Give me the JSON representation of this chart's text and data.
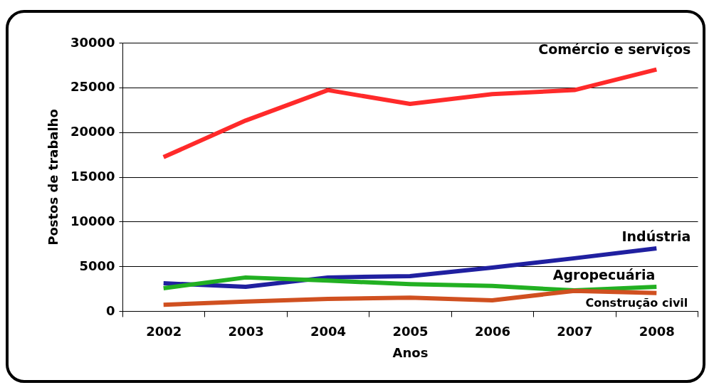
{
  "chart_data": {
    "type": "line",
    "xlabel": "Anos",
    "ylabel": "Postos de trabalho",
    "categories": [
      "2002",
      "2003",
      "2004",
      "2005",
      "2006",
      "2007",
      "2008"
    ],
    "ylim": [
      0,
      30000
    ],
    "yticks": [
      0,
      5000,
      10000,
      15000,
      20000,
      25000,
      30000
    ],
    "grid": "y",
    "legend": false,
    "series": [
      {
        "name": "Comércio e serviços",
        "color": "#ff2a2a",
        "values": [
          17200,
          21300,
          24700,
          23150,
          24250,
          24700,
          27000
        ]
      },
      {
        "name": "Indústria",
        "color": "#2020a0",
        "values": [
          3100,
          2700,
          3750,
          3900,
          4850,
          5900,
          7000
        ]
      },
      {
        "name": "Agropecuária",
        "color": "#22b022",
        "values": [
          2550,
          3750,
          3400,
          3000,
          2800,
          2300,
          2700
        ]
      },
      {
        "name": "Construção civil",
        "color": "#d05020",
        "values": [
          700,
          1050,
          1350,
          1500,
          1200,
          2250,
          2000
        ]
      }
    ]
  }
}
